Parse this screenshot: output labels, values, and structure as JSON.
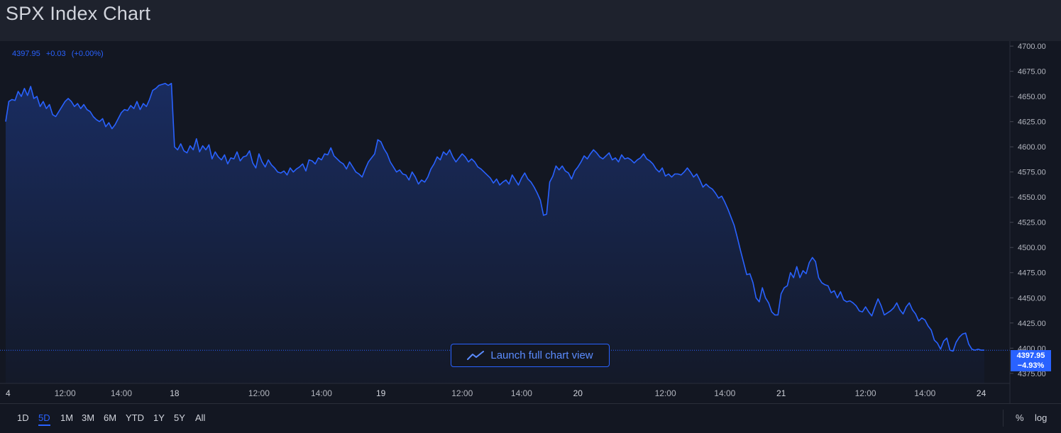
{
  "page": {
    "title": "SPX Index Chart"
  },
  "legend": {
    "price": "4397.95",
    "change": "+0.03",
    "change_pct": "(+0.00%)"
  },
  "launch_button": {
    "label": "Launch full chart view"
  },
  "price_tag": {
    "price": "4397.95",
    "change_pct": "−4.93%"
  },
  "range_buttons": [
    {
      "label": "1D",
      "active": false
    },
    {
      "label": "5D",
      "active": true
    },
    {
      "label": "1M",
      "active": false
    },
    {
      "label": "3M",
      "active": false
    },
    {
      "label": "6M",
      "active": false
    },
    {
      "label": "YTD",
      "active": false
    },
    {
      "label": "1Y",
      "active": false
    },
    {
      "label": "5Y",
      "active": false
    },
    {
      "label": "All",
      "active": false
    }
  ],
  "scale_buttons": {
    "percent": "%",
    "log": "log"
  },
  "colors": {
    "line": "#2962ff",
    "background": "#131722",
    "frame": "#1e222d"
  },
  "chart_data": {
    "type": "area",
    "ylim": [
      4365,
      4705
    ],
    "y_ticks": [
      "4700.00",
      "4675.00",
      "4650.00",
      "4625.00",
      "4600.00",
      "4575.00",
      "4550.00",
      "4525.00",
      "4500.00",
      "4475.00",
      "4450.00",
      "4425.00",
      "4400.00",
      "4375.00"
    ],
    "x_tick_labels": [
      "4",
      "12:00",
      "14:00",
      "18",
      "12:00",
      "14:00",
      "19",
      "12:00",
      "14:00",
      "20",
      "12:00",
      "14:00",
      "21",
      "12:00",
      "14:00",
      "24"
    ],
    "x_tick_idx": [
      0,
      19,
      37,
      54,
      81,
      101,
      120,
      146,
      165,
      183,
      211,
      230,
      248,
      275,
      294,
      312
    ],
    "last_price": 4397.95,
    "series": [
      {
        "values": [
          4625,
          4645,
          4647,
          4646,
          4655,
          4650,
          4658,
          4651,
          4660,
          4648,
          4650,
          4640,
          4645,
          4638,
          4642,
          4632,
          4630,
          4635,
          4640,
          4645,
          4648,
          4645,
          4640,
          4643,
          4638,
          4642,
          4637,
          4635,
          4630,
          4627,
          4625,
          4628,
          4620,
          4624,
          4618,
          4622,
          4628,
          4634,
          4637,
          4636,
          4641,
          4638,
          4645,
          4637,
          4643,
          4640,
          4647,
          4656,
          4658,
          4661,
          4662,
          4663,
          4661,
          4663,
          4600,
          4597,
          4603,
          4596,
          4594,
          4601,
          4597,
          4608,
          4595,
          4601,
          4597,
          4602,
          4588,
          4595,
          4590,
          4587,
          4592,
          4583,
          4589,
          4588,
          4595,
          4586,
          4590,
          4591,
          4596,
          4584,
          4579,
          4593,
          4585,
          4580,
          4587,
          4582,
          4579,
          4575,
          4574,
          4576,
          4572,
          4579,
          4575,
          4578,
          4580,
          4583,
          4576,
          4587,
          4586,
          4583,
          4589,
          4587,
          4593,
          4592,
          4599,
          4591,
          4588,
          4585,
          4583,
          4578,
          4585,
          4580,
          4575,
          4573,
          4570,
          4578,
          4585,
          4589,
          4593,
          4607,
          4605,
          4598,
          4593,
          4585,
          4580,
          4575,
          4577,
          4573,
          4572,
          4567,
          4575,
          4570,
          4563,
          4567,
          4565,
          4570,
          4578,
          4583,
          4590,
          4587,
          4595,
          4592,
          4597,
          4590,
          4585,
          4589,
          4593,
          4590,
          4585,
          4588,
          4585,
          4580,
          4578,
          4575,
          4572,
          4569,
          4564,
          4568,
          4562,
          4565,
          4567,
          4563,
          4572,
          4567,
          4562,
          4569,
          4574,
          4568,
          4565,
          4560,
          4554,
          4547,
          4532,
          4533,
          4565,
          4571,
          4581,
          4577,
          4581,
          4576,
          4574,
          4568,
          4576,
          4580,
          4585,
          4591,
          4588,
          4593,
          4597,
          4594,
          4590,
          4588,
          4591,
          4594,
          4587,
          4589,
          4585,
          4592,
          4588,
          4589,
          4587,
          4584,
          4587,
          4589,
          4593,
          4588,
          4586,
          4583,
          4578,
          4575,
          4579,
          4571,
          4573,
          4570,
          4573,
          4573,
          4572,
          4575,
          4579,
          4575,
          4570,
          4573,
          4567,
          4560,
          4563,
          4560,
          4558,
          4554,
          4549,
          4551,
          4545,
          4538,
          4530,
          4522,
          4510,
          4497,
          4485,
          4473,
          4474,
          4465,
          4450,
          4446,
          4460,
          4450,
          4445,
          4436,
          4433,
          4433,
          4454,
          4460,
          4462,
          4475,
          4470,
          4481,
          4470,
          4477,
          4474,
          4485,
          4490,
          4486,
          4470,
          4465,
          4463,
          4462,
          4455,
          4457,
          4450,
          4456,
          4448,
          4446,
          4447,
          4445,
          4442,
          4437,
          4436,
          4441,
          4436,
          4432,
          4441,
          4449,
          4442,
          4433,
          4435,
          4437,
          4440,
          4445,
          4438,
          4434,
          4441,
          4445,
          4438,
          4434,
          4427,
          4430,
          4428,
          4422,
          4418,
          4408,
          4405,
          4399,
          4407,
          4410,
          4398,
          4397,
          4406,
          4411,
          4414,
          4415,
          4404,
          4399,
          4398,
          4399,
          4398,
          4398
        ]
      }
    ]
  }
}
